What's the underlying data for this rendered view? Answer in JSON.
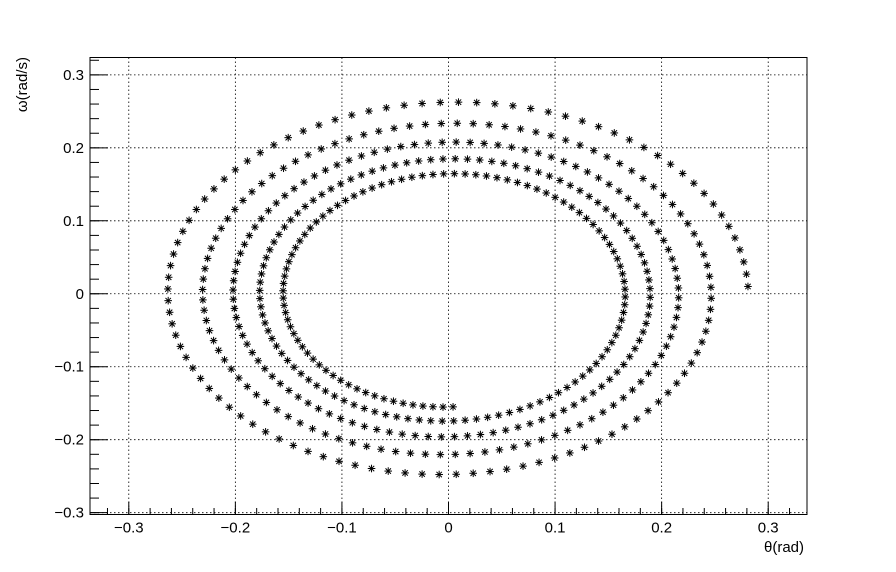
{
  "chart_data": {
    "type": "scatter",
    "title": "",
    "xlabel": "θ(rad)",
    "ylabel": "ω(rad/s)",
    "xlim": [
      -0.3364,
      0.3364
    ],
    "ylim": [
      -0.3025,
      0.3238
    ],
    "xticks": [
      {
        "value": -0.3,
        "label": "−0.3"
      },
      {
        "value": -0.2,
        "label": "−0.2"
      },
      {
        "value": -0.1,
        "label": "−0.1"
      },
      {
        "value": 0,
        "label": "0"
      },
      {
        "value": 0.1,
        "label": "0.1"
      },
      {
        "value": 0.2,
        "label": "0.2"
      },
      {
        "value": 0.3,
        "label": "0.3"
      }
    ],
    "yticks": [
      {
        "value": -0.3,
        "label": "−0.3"
      },
      {
        "value": -0.2,
        "label": "−0.2"
      },
      {
        "value": -0.1,
        "label": "−0.1"
      },
      {
        "value": 0,
        "label": "0"
      },
      {
        "value": 0.1,
        "label": "0.1"
      },
      {
        "value": 0.2,
        "label": "0.2"
      },
      {
        "value": 0.3,
        "label": "0.3"
      }
    ],
    "grid": true,
    "marker": "star",
    "color": "#000000",
    "series": [
      {
        "points_per_turn": 100,
        "turns": 4.75,
        "start_theta": 0.281,
        "start_omega": 0.01,
        "end_theta": 0.15,
        "end_omega": -0.005,
        "theta_amplitude_start": 0.281,
        "theta_amplitude_end": 0.15,
        "omega_amplitude_start": 0.27,
        "omega_amplitude_end": 0.155,
        "sense": "counter-clockwise"
      }
    ]
  }
}
